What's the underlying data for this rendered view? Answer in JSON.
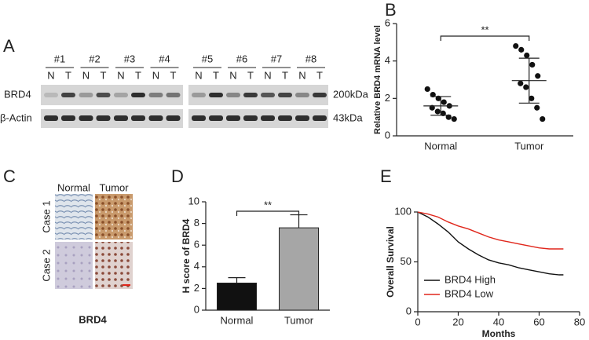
{
  "panel_labels": [
    "A",
    "B",
    "C",
    "D",
    "E"
  ],
  "blot": {
    "samples": [
      "#1",
      "#2",
      "#3",
      "#4",
      "#5",
      "#6",
      "#7",
      "#8"
    ],
    "lanes": [
      "N",
      "T"
    ],
    "rows": [
      "BRD4",
      "β-Actin"
    ],
    "sizes": [
      "200kDa",
      "43kDa"
    ]
  },
  "histology": {
    "columns": [
      "Normal",
      "Tumor"
    ],
    "rows": [
      "Case 1",
      "Case 2"
    ],
    "caption": "BRD4"
  },
  "chart_data": [
    {
      "type": "strip",
      "y_label": "Relative BRD4 mRNA level",
      "categories": [
        "Normal",
        "Tumor"
      ],
      "points": [
        [
          2.5,
          2.2,
          2.0,
          1.8,
          1.6,
          1.5,
          1.3,
          1.2,
          1.0,
          0.9
        ],
        [
          4.8,
          4.6,
          4.3,
          3.8,
          3.2,
          2.8,
          2.6,
          2.0,
          1.5,
          0.9
        ]
      ],
      "mean": [
        1.6,
        2.95
      ],
      "sd": [
        0.5,
        1.2
      ],
      "significance": "**",
      "color": "#111111",
      "ylim": [
        0,
        6
      ],
      "yticks": [
        0,
        2,
        4,
        6
      ]
    },
    {
      "type": "bar",
      "y_label": "H score of BRD4",
      "categories": [
        "Normal",
        "Tumor"
      ],
      "values": [
        2.5,
        7.6
      ],
      "errors": [
        0.5,
        1.2
      ],
      "colors": [
        "#111111",
        "#a6a6a6"
      ],
      "significance": "**",
      "ylim": [
        0,
        10
      ],
      "yticks": [
        0,
        2,
        4,
        6,
        8,
        10
      ]
    },
    {
      "type": "line",
      "x_label": "Months",
      "y_label": "Overall Survival",
      "x": [
        0,
        5,
        10,
        15,
        20,
        25,
        30,
        35,
        40,
        45,
        50,
        55,
        60,
        65,
        70,
        72
      ],
      "series": [
        {
          "name": "BRD4 High",
          "color": "#111111",
          "values": [
            100,
            95,
            88,
            80,
            70,
            63,
            57,
            52,
            49,
            47,
            44,
            42,
            40,
            38,
            37,
            37
          ]
        },
        {
          "name": "BRD4 Low",
          "color": "#e0261b",
          "values": [
            100,
            98,
            95,
            90,
            86,
            83,
            79,
            75,
            72,
            70,
            68,
            66,
            64,
            63,
            63,
            63
          ]
        }
      ],
      "xlim": [
        0,
        80
      ],
      "xticks": [
        0,
        20,
        40,
        60,
        80
      ],
      "ylim": [
        0,
        100
      ],
      "yticks": [
        0,
        50,
        100
      ],
      "legend": "lower-left"
    }
  ]
}
